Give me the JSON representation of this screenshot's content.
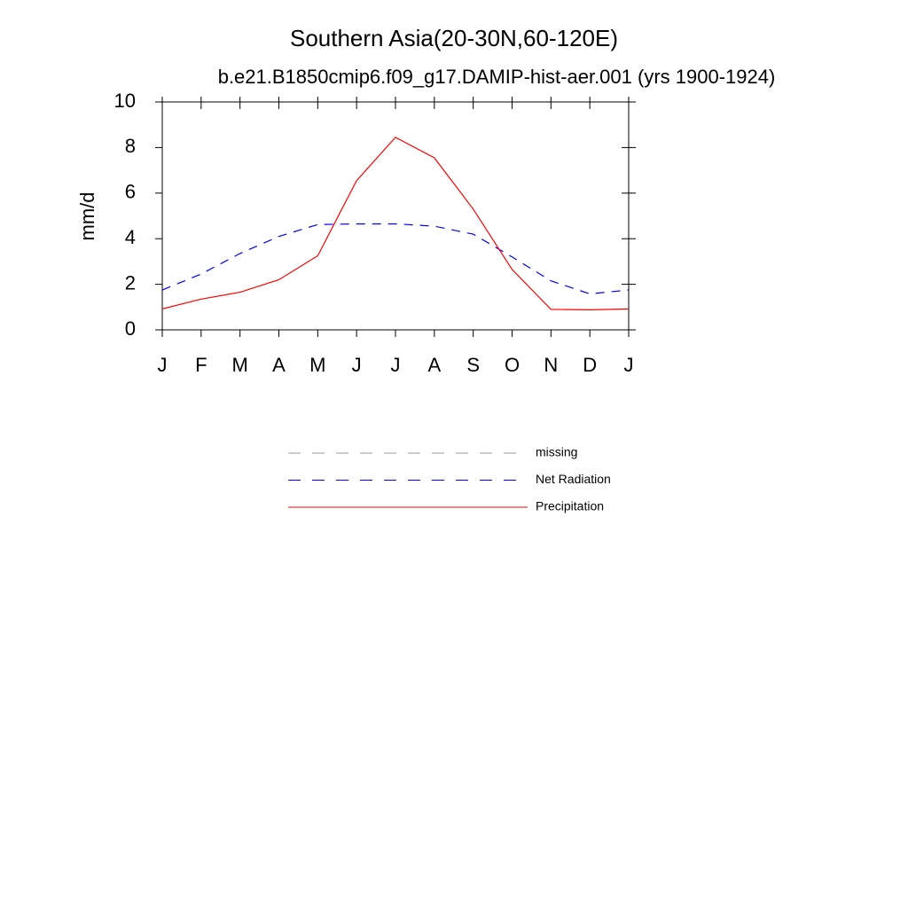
{
  "chart_data": {
    "type": "line",
    "title": "Southern Asia(20-30N,60-120E)",
    "subtitle": "b.e21.B1850cmip6.f09_g17.DAMIP-hist-aer.001 (yrs 1900-1924)",
    "y_label": "mm/d",
    "categories": [
      "J",
      "F",
      "M",
      "A",
      "M",
      "J",
      "J",
      "A",
      "S",
      "O",
      "N",
      "D",
      "J"
    ],
    "series": [
      {
        "name": "missing",
        "color": "#999999",
        "dash": true,
        "values": [
          null,
          null,
          null,
          null,
          null,
          null,
          null,
          null,
          null,
          null,
          null,
          null,
          null
        ]
      },
      {
        "name": "Net Radiation",
        "color": "#0000ff",
        "dash": true,
        "values": [
          1.75,
          2.45,
          3.35,
          4.1,
          4.62,
          4.65,
          4.65,
          4.55,
          4.2,
          3.2,
          2.15,
          1.58,
          1.75
        ]
      },
      {
        "name": "Precipitation",
        "color": "#ff0000",
        "dash": false,
        "values": [
          0.92,
          1.35,
          1.65,
          2.2,
          3.25,
          6.55,
          8.45,
          7.55,
          5.3,
          2.65,
          0.9,
          0.88,
          0.92
        ]
      }
    ],
    "ylim": [
      0,
      10
    ],
    "yticks": [
      0,
      2,
      4,
      6,
      8,
      10
    ],
    "grid": false
  }
}
